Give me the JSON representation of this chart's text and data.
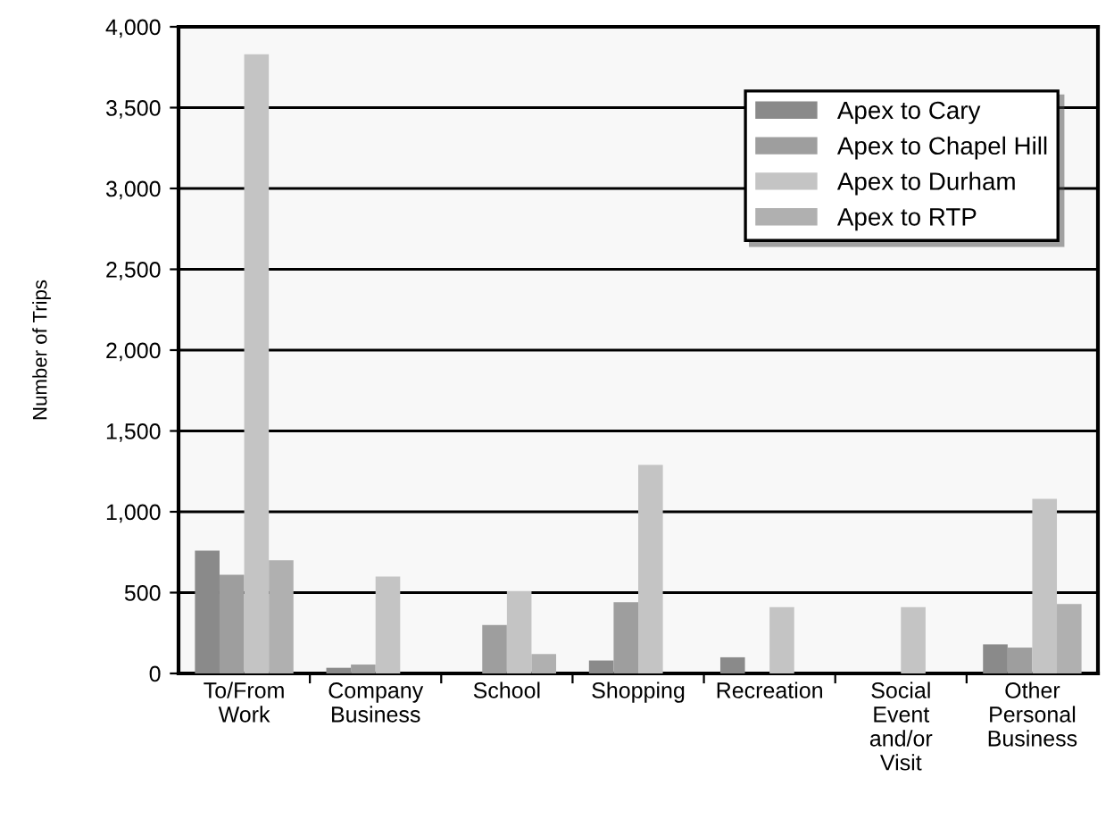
{
  "chart_data": {
    "type": "bar",
    "ylabel": "Number of Trips",
    "categories": [
      "To/From\nWork",
      "Company\nBusiness",
      "School",
      "Shopping",
      "Recreation",
      "Social\nEvent\nand/or\nVisit",
      "Other\nPersonal\nBusiness"
    ],
    "series": [
      {
        "name": "Apex to Cary",
        "color": "#8a8a8a",
        "values": [
          760,
          35,
          0,
          80,
          100,
          0,
          180
        ]
      },
      {
        "name": "Apex to Chapel Hill",
        "color": "#9e9e9e",
        "values": [
          610,
          55,
          300,
          440,
          0,
          0,
          160
        ]
      },
      {
        "name": "Apex to Durham",
        "color": "#c4c4c4",
        "values": [
          3830,
          600,
          510,
          1290,
          410,
          410,
          1080
        ]
      },
      {
        "name": "Apex to RTP",
        "color": "#b0b0b0",
        "values": [
          700,
          0,
          120,
          0,
          0,
          0,
          430
        ]
      }
    ],
    "ylim": [
      0,
      4000
    ],
    "yticks": [
      {
        "value": 0,
        "label": "0"
      },
      {
        "value": 500,
        "label": "500"
      },
      {
        "value": 1000,
        "label": "1,000"
      },
      {
        "value": 1500,
        "label": "1,500"
      },
      {
        "value": 2000,
        "label": "2,000"
      },
      {
        "value": 2500,
        "label": "2,500"
      },
      {
        "value": 3000,
        "label": "3,000"
      },
      {
        "value": 3500,
        "label": "3,500"
      },
      {
        "value": 4000,
        "label": "4,000"
      }
    ],
    "grid": "y",
    "legend": "top right"
  }
}
